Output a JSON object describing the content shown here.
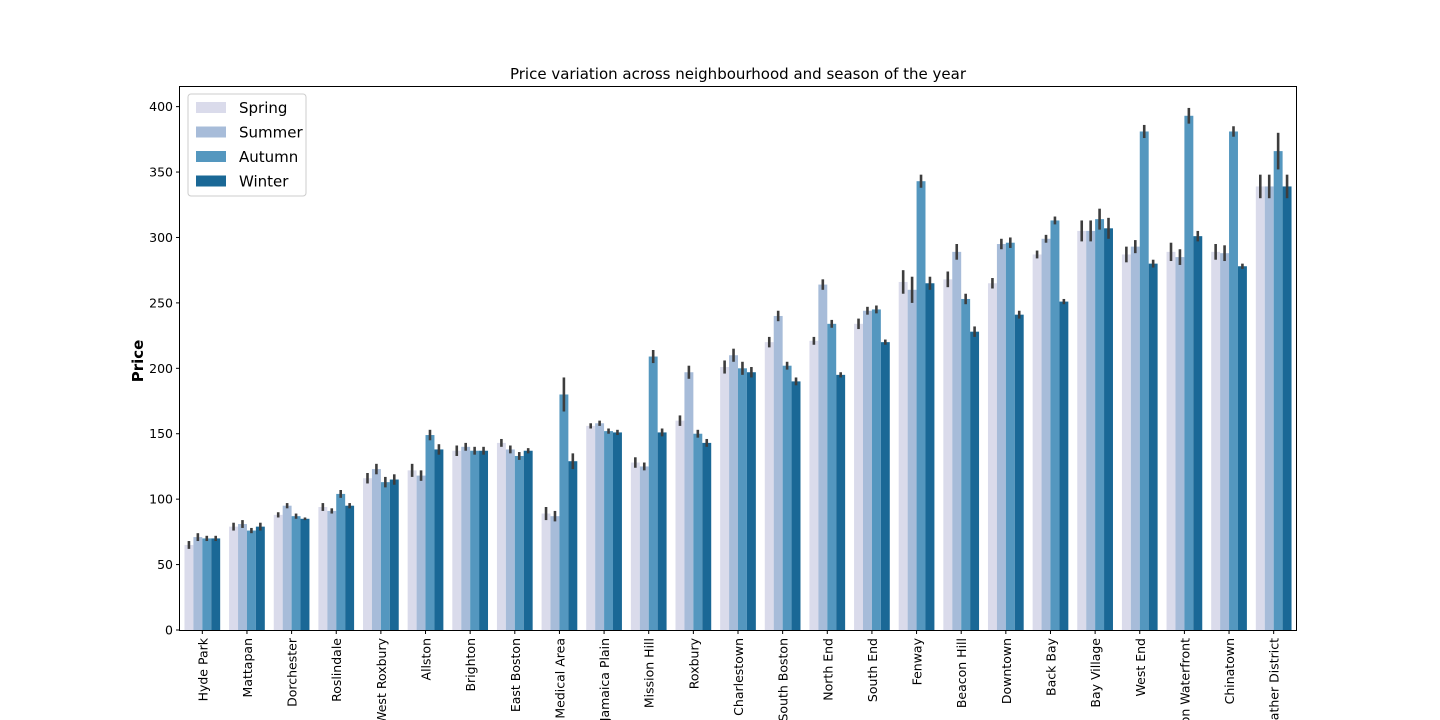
{
  "chart_data": {
    "type": "bar",
    "title": "Price variation across neighbourhood and season of the year",
    "xlabel": "",
    "ylabel": "Price",
    "ylim": [
      0,
      415
    ],
    "yticks": [
      0,
      50,
      100,
      150,
      200,
      250,
      300,
      350,
      400
    ],
    "grid": false,
    "legend": "top-left",
    "categories": [
      "Hyde Park",
      "Mattapan",
      "Dorchester",
      "Roslindale",
      "West Roxbury",
      "Allston",
      "Brighton",
      "East Boston",
      "Medical Area",
      "Jamaica Plain",
      "Mission Hill",
      "Roxbury",
      "Charlestown",
      "South Boston",
      "North End",
      "South End",
      "Fenway",
      "Beacon Hill",
      "Downtown",
      "Back Bay",
      "Bay Village",
      "West End",
      "Boston Waterfront",
      "Chinatown",
      "Leather District"
    ],
    "series": [
      {
        "name": "Spring",
        "color": "#dadbeb",
        "values": [
          65,
          79,
          88,
          94,
          116,
          122,
          137,
          143,
          89,
          156,
          128,
          160,
          201,
          220,
          221,
          234,
          266,
          268,
          265,
          287,
          305,
          287,
          289,
          289,
          339
        ],
        "err": [
          3,
          3,
          2,
          3,
          4,
          5,
          4,
          3,
          5,
          2,
          4,
          4,
          5,
          4,
          3,
          4,
          9,
          6,
          4,
          3,
          8,
          6,
          7,
          6,
          9
        ]
      },
      {
        "name": "Summer",
        "color": "#a7bcd9",
        "values": [
          71,
          81,
          95,
          91,
          123,
          118,
          140,
          138,
          87,
          158,
          125,
          197,
          210,
          240,
          264,
          244,
          260,
          289,
          295,
          299,
          305,
          293,
          285,
          288,
          339
        ],
        "err": [
          3,
          3,
          2,
          2,
          4,
          4,
          3,
          3,
          4,
          2,
          3,
          5,
          5,
          4,
          4,
          3,
          10,
          6,
          4,
          3,
          8,
          5,
          6,
          6,
          9
        ]
      },
      {
        "name": "Autumn",
        "color": "#5497bf",
        "values": [
          70,
          76,
          87,
          104,
          113,
          149,
          137,
          133,
          180,
          152,
          209,
          150,
          200,
          202,
          234,
          245,
          343,
          253,
          296,
          313,
          314,
          381,
          393,
          381,
          366
        ],
        "err": [
          2,
          2,
          2,
          3,
          4,
          4,
          3,
          3,
          13,
          2,
          5,
          3,
          5,
          3,
          3,
          3,
          5,
          4,
          4,
          3,
          8,
          5,
          6,
          4,
          14
        ]
      },
      {
        "name": "Winter",
        "color": "#1a6896",
        "values": [
          70,
          79,
          85,
          95,
          115,
          138,
          137,
          137,
          129,
          151,
          151,
          143,
          197,
          190,
          195,
          220,
          265,
          228,
          241,
          251,
          307,
          280,
          301,
          278,
          339
        ],
        "err": [
          2,
          3,
          1,
          2,
          4,
          4,
          3,
          2,
          6,
          2,
          3,
          3,
          4,
          3,
          2,
          2,
          5,
          4,
          3,
          2,
          8,
          3,
          4,
          2,
          9
        ]
      }
    ]
  }
}
